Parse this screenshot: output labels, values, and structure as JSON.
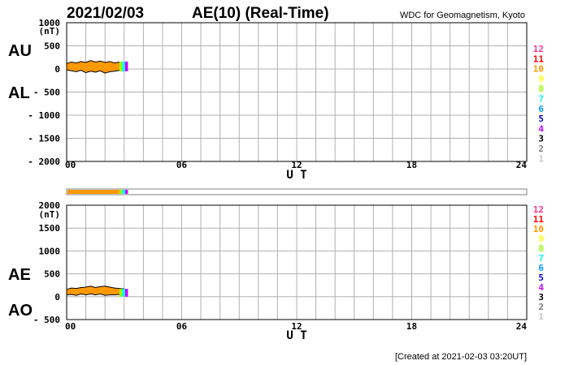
{
  "header": {
    "date": "2021/02/03",
    "title": "AE(10) (Real-Time)",
    "source": "WDC for Geomagnetism, Kyoto"
  },
  "footer": {
    "created": "[Created at 2021-02-03 03:20UT]"
  },
  "colors": {
    "fill": "#ff9900",
    "outline": "#000000",
    "grid": "#b0b0b0"
  },
  "legend": [
    {
      "label": "12",
      "color": "#ff3399"
    },
    {
      "label": "11",
      "color": "#ff0000"
    },
    {
      "label": "10",
      "color": "#ff9900"
    },
    {
      "label": "9",
      "color": "#ffff00"
    },
    {
      "label": "8",
      "color": "#99ff00"
    },
    {
      "label": "7",
      "color": "#00ffff"
    },
    {
      "label": "6",
      "color": "#0099ff"
    },
    {
      "label": "5",
      "color": "#0000cc"
    },
    {
      "label": "4",
      "color": "#cc00ff"
    },
    {
      "label": "3",
      "color": "#000000"
    },
    {
      "label": "2",
      "color": "#808080"
    },
    {
      "label": "1",
      "color": "#c8c8c8"
    }
  ],
  "chart_data": [
    {
      "type": "area",
      "name_top": "AU",
      "name_bottom": "AL",
      "unit": "(nT)",
      "xlabel": "U T",
      "xlim": [
        0,
        24
      ],
      "ylim": [
        -2000,
        1000
      ],
      "xticks": [
        0,
        6,
        12,
        18,
        24
      ],
      "xtick_labels": [
        "00",
        "06",
        "12",
        "18",
        "24"
      ],
      "yticks": [
        1000,
        500,
        0,
        -500,
        -1000,
        -1500,
        -2000
      ],
      "ytick_labels": [
        "1000",
        "500",
        "0",
        "- 500",
        "- 1000",
        "- 1500",
        "- 2000"
      ],
      "grid": true,
      "x": [
        0.0,
        0.25,
        0.5,
        0.75,
        1.0,
        1.25,
        1.5,
        1.75,
        2.0,
        2.25,
        2.5,
        2.75,
        3.0,
        3.2
      ],
      "series": [
        {
          "name": "AU",
          "values": [
            120,
            150,
            130,
            160,
            140,
            180,
            150,
            170,
            140,
            160,
            130,
            150,
            140,
            120
          ]
        },
        {
          "name": "AL",
          "values": [
            -20,
            -40,
            -60,
            -30,
            -80,
            -50,
            -70,
            -40,
            -90,
            -60,
            -50,
            -30,
            -40,
            -20
          ]
        }
      ]
    },
    {
      "type": "area",
      "name_top": "AE",
      "name_bottom": "AO",
      "unit": "(nT)",
      "xlabel": "U T",
      "xlim": [
        0,
        24
      ],
      "ylim": [
        -500,
        2000
      ],
      "xticks": [
        0,
        6,
        12,
        18,
        24
      ],
      "xtick_labels": [
        "00",
        "06",
        "12",
        "18",
        "24"
      ],
      "yticks": [
        2000,
        1500,
        1000,
        500,
        0,
        -500
      ],
      "ytick_labels": [
        "2000",
        "1500",
        "1000",
        "500",
        "0",
        "- 500"
      ],
      "grid": true,
      "x": [
        0.0,
        0.25,
        0.5,
        0.75,
        1.0,
        1.25,
        1.5,
        1.75,
        2.0,
        2.25,
        2.5,
        2.75,
        3.0,
        3.2
      ],
      "series": [
        {
          "name": "AE",
          "values": [
            160,
            190,
            180,
            200,
            210,
            230,
            200,
            220,
            230,
            210,
            190,
            180,
            170,
            130
          ]
        },
        {
          "name": "AO",
          "values": [
            40,
            50,
            30,
            60,
            40,
            60,
            40,
            60,
            30,
            40,
            40,
            50,
            40,
            30
          ]
        }
      ]
    }
  ]
}
